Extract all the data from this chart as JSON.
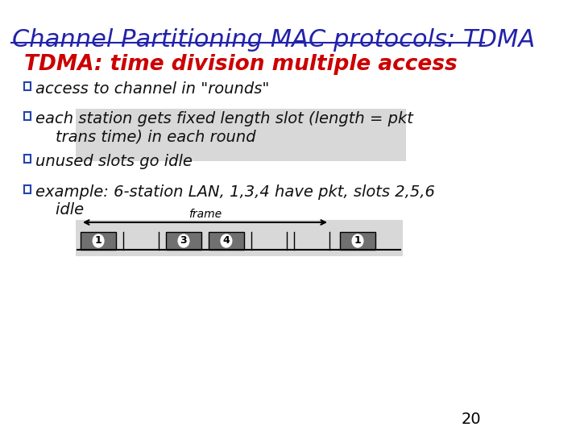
{
  "title": "Channel Partitioning MAC protocols: TDMA",
  "title_color": "#2222aa",
  "title_fontsize": 22,
  "subtitle": "TDMA: time division multiple access",
  "subtitle_color": "#cc0000",
  "subtitle_fontsize": 19,
  "bullet_color": "#2244aa",
  "bullet_fontsize": 14,
  "bullets": [
    "access to channel in \"rounds\"",
    "each station gets fixed length slot (length = pkt\n    trans time) in each round",
    "unused slots go idle",
    "example: 6-station LAN, 1,3,4 have pkt, slots 2,5,6\n    idle"
  ],
  "background_color": "#ffffff",
  "diagram_bg": "#d8d8d8",
  "slot_bg": "#707070",
  "slot_text_color": "#ffffff",
  "frame_arrow_color": "#000000",
  "page_number": "20",
  "page_number_color": "#000000"
}
